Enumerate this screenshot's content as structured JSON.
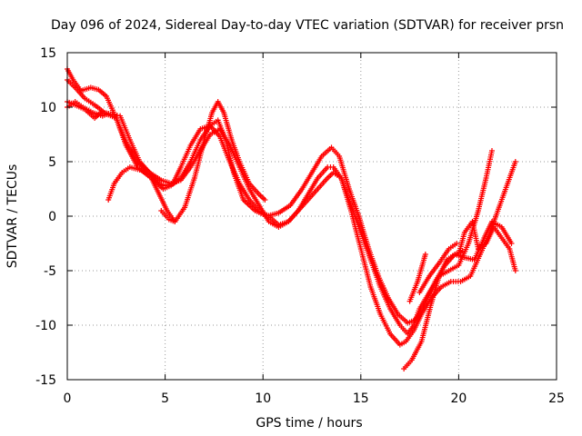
{
  "chart_data": {
    "type": "scatter",
    "title": "Day 096 of 2024, Sidereal Day-to-day VTEC variation (SDTVAR) for receiver prsn",
    "xlabel": "GPS time / hours",
    "ylabel": "SDTVAR / TECUs",
    "xlim": [
      0,
      25
    ],
    "ylim": [
      -15,
      15
    ],
    "x_ticks": [
      "0",
      "5",
      "10",
      "15",
      "20",
      "25"
    ],
    "y_ticks": [
      "15",
      "10",
      "5",
      "0",
      "-5",
      "-10",
      "-15"
    ],
    "grid": true,
    "marker": "+",
    "color": "#ff0000",
    "series": [
      {
        "x": [
          0.0,
          0.3,
          0.7,
          1.2,
          1.6,
          2.0,
          2.5,
          3.0,
          3.6,
          4.3,
          4.9,
          5.3,
          5.8,
          6.3,
          6.8,
          7.3,
          7.7,
          8.1,
          8.5,
          9.0,
          9.6,
          10.2,
          10.8,
          11.4,
          12.0,
          12.5,
          13.0,
          13.5,
          13.9,
          14.4,
          14.9,
          15.4,
          15.9,
          16.4,
          16.9,
          17.4,
          17.8,
          18.3,
          18.8,
          19.3,
          19.8,
          20.3,
          20.8,
          21.3,
          21.7,
          22.2,
          22.7
        ],
        "y": [
          13.5,
          12.5,
          11.5,
          11.8,
          11.6,
          11.0,
          9.0,
          6.5,
          4.5,
          3.5,
          2.5,
          2.8,
          3.5,
          5.0,
          7.0,
          8.3,
          8.8,
          7.0,
          4.0,
          1.5,
          0.5,
          0.0,
          0.3,
          1.0,
          2.5,
          4.0,
          5.5,
          6.3,
          5.5,
          2.5,
          0.0,
          -3.0,
          -5.5,
          -7.5,
          -9.0,
          -9.8,
          -9.5,
          -8.0,
          -6.0,
          -4.5,
          -3.5,
          -3.8,
          -4.0,
          -2.0,
          -0.5,
          -1.0,
          -2.5
        ]
      },
      {
        "x": [
          0.0,
          0.4,
          0.9,
          1.4,
          1.9,
          2.4,
          2.7,
          3.2,
          3.7,
          4.2,
          4.7,
          5.0,
          5.4,
          5.8,
          6.3,
          6.8,
          7.3,
          7.8,
          8.3,
          8.8,
          9.3,
          9.8,
          10.3,
          10.8,
          11.3,
          11.8,
          12.3,
          12.8,
          13.3,
          13.6,
          14.0,
          14.5,
          15.0,
          15.5,
          16.0,
          16.5,
          17.0,
          17.4,
          17.7,
          18.0,
          18.5,
          19.0,
          19.5,
          20.0,
          20.5,
          21.0,
          21.4,
          21.7
        ],
        "y": [
          12.5,
          11.8,
          10.8,
          10.2,
          9.5,
          9.3,
          9.2,
          7.0,
          5.0,
          4.0,
          3.0,
          2.8,
          3.0,
          4.5,
          6.5,
          8.0,
          8.3,
          7.3,
          5.0,
          3.0,
          1.5,
          0.5,
          0.0,
          -0.8,
          -0.5,
          0.5,
          2.0,
          3.5,
          4.5,
          4.5,
          3.5,
          1.0,
          -1.5,
          -4.0,
          -6.5,
          -8.5,
          -10.0,
          -10.8,
          -10.0,
          -8.5,
          -7.0,
          -5.5,
          -5.0,
          -4.5,
          -2.5,
          0.5,
          3.5,
          6.0
        ]
      },
      {
        "x": [
          0.0,
          0.4,
          0.9,
          1.4,
          1.7,
          2.1,
          2.5,
          3.0,
          3.6,
          4.2,
          4.8,
          5.3,
          5.8,
          6.3,
          6.8,
          7.3,
          7.8,
          8.3,
          8.8,
          9.3,
          9.8,
          10.3,
          10.8,
          11.3,
          11.8,
          12.3,
          12.8,
          13.3,
          13.6,
          14.0,
          14.5,
          15.0,
          15.5,
          16.0,
          16.5,
          17.0,
          17.3,
          17.7,
          18.1,
          18.6,
          19.1,
          19.6,
          20.1,
          20.6,
          21.1,
          21.6,
          22.1,
          22.5,
          22.9
        ],
        "y": [
          10.5,
          10.2,
          9.8,
          9.0,
          9.5,
          9.3,
          9.0,
          6.8,
          5.0,
          4.0,
          3.3,
          3.0,
          3.3,
          4.5,
          6.0,
          7.5,
          8.0,
          6.5,
          4.5,
          2.5,
          1.0,
          -0.5,
          -1.0,
          -0.5,
          0.5,
          1.5,
          2.5,
          3.5,
          4.0,
          3.5,
          0.5,
          -3.0,
          -6.5,
          -9.0,
          -10.8,
          -11.8,
          -11.5,
          -10.5,
          -9.0,
          -7.5,
          -6.5,
          -6.0,
          -6.0,
          -5.5,
          -3.5,
          -1.5,
          1.0,
          3.0,
          5.0
        ]
      },
      {
        "x": [
          0.0,
          0.4,
          0.8,
          1.3,
          1.8,
          2.1
        ],
        "y": [
          10.0,
          10.5,
          10.0,
          9.5,
          9.2,
          9.4
        ]
      },
      {
        "x": [
          2.1,
          2.4,
          2.8,
          3.2,
          3.8,
          4.3,
          4.7,
          5.1,
          5.5,
          6.0,
          6.5,
          7.0,
          7.4,
          7.7,
          8.0,
          8.4,
          8.8,
          9.3,
          9.8,
          10.1
        ],
        "y": [
          1.5,
          3.0,
          4.0,
          4.5,
          4.2,
          3.5,
          2.0,
          0.5,
          -0.5,
          0.8,
          3.5,
          7.0,
          9.5,
          10.5,
          9.5,
          7.0,
          5.0,
          3.0,
          2.0,
          1.5
        ]
      },
      {
        "x": [
          4.8,
          5.2,
          5.5
        ],
        "y": [
          0.5,
          -0.3,
          -0.5
        ]
      },
      {
        "x": [
          17.2,
          17.6,
          18.1,
          18.6,
          19.0,
          19.4,
          19.8,
          20.2
        ],
        "y": [
          -14.0,
          -13.2,
          -11.5,
          -8.0,
          -5.5,
          -4.0,
          -3.5,
          -3.2
        ]
      },
      {
        "x": [
          18.0,
          18.5,
          19.0,
          19.5,
          19.9
        ],
        "y": [
          -7.0,
          -5.5,
          -4.3,
          -3.0,
          -2.5
        ]
      },
      {
        "x": [
          17.5,
          17.9,
          18.3
        ],
        "y": [
          -7.8,
          -6.0,
          -3.5
        ]
      },
      {
        "x": [
          20.0,
          20.3,
          20.7,
          21.0,
          21.4,
          21.8,
          22.2,
          22.6,
          22.9
        ],
        "y": [
          -3.5,
          -1.5,
          -0.5,
          -3.0,
          -2.5,
          -1.0,
          -2.0,
          -3.0,
          -5.0
        ]
      }
    ]
  }
}
